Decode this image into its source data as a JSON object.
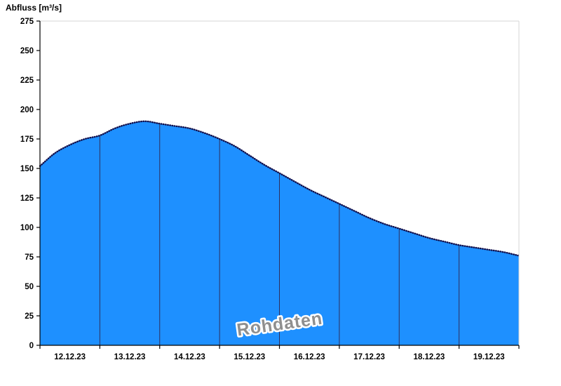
{
  "title": "Abfluss [m³/s]",
  "watermark": "Rohdaten",
  "chart_data": {
    "type": "area",
    "title": "Abfluss [m³/s]",
    "ylabel": "Abfluss [m³/s]",
    "xlabel": "",
    "ylim": [
      0,
      275
    ],
    "y_ticks": [
      0,
      25,
      50,
      75,
      100,
      125,
      150,
      175,
      200,
      225,
      250,
      275
    ],
    "x_labels": [
      "12.12.23",
      "13.12.23",
      "14.12.23",
      "15.12.23",
      "16.12.23",
      "17.12.23",
      "18.12.23",
      "19.12.23"
    ],
    "x_range_days": 8,
    "grid": "none",
    "legend": "none",
    "series": [
      {
        "name": "Rohdaten",
        "x_days": [
          0,
          0.25,
          0.5,
          0.75,
          1,
          1.25,
          1.5,
          1.75,
          2,
          2.25,
          2.5,
          2.75,
          3,
          3.25,
          3.5,
          3.75,
          4,
          4.25,
          4.5,
          4.75,
          5,
          5.25,
          5.5,
          5.75,
          6,
          6.25,
          6.5,
          6.75,
          7,
          7.25,
          7.5,
          7.75,
          8
        ],
        "values": [
          152,
          163,
          170,
          175,
          178,
          184,
          188,
          190,
          188,
          186,
          184,
          180,
          175,
          169,
          161,
          153,
          146,
          139,
          132,
          126,
          120,
          114,
          108,
          103,
          99,
          95,
          91,
          88,
          85,
          83,
          81,
          79,
          76
        ]
      }
    ],
    "day_boundary_values": [
      178,
      188,
      175,
      146,
      120,
      99,
      85
    ],
    "colors": {
      "fill": "#1E90FF",
      "edge": "#10104E",
      "separator": "#2F2F5E",
      "axis": "#000000",
      "frame": "#D6D6D6",
      "watermark_fill": "#8F8F8F",
      "watermark_halo": "#FFFFFF"
    }
  }
}
